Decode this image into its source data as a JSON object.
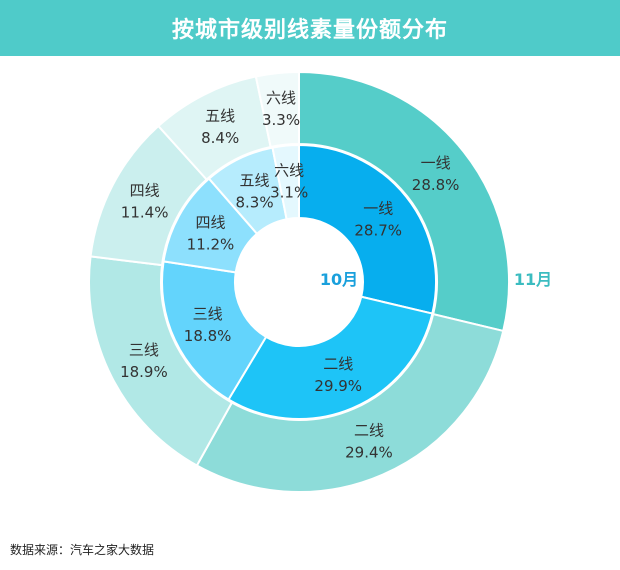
{
  "title": "按城市级别线素量份额分布",
  "source": "数据来源：汽车之家大数据",
  "chart_data": {
    "type": "donut",
    "title": "按城市级别线素量份额分布",
    "categories": [
      "一线",
      "二线",
      "三线",
      "四线",
      "五线",
      "六线"
    ],
    "series": [
      {
        "name": "10月",
        "values": [
          28.7,
          29.9,
          18.8,
          11.2,
          8.3,
          3.1
        ],
        "labels": [
          "28.7%",
          "29.9%",
          "18.8%",
          "11.2%",
          "8.3%",
          "3.1%"
        ],
        "colors": [
          "#07aeee",
          "#1ec4f7",
          "#63d4fc",
          "#8de0fd",
          "#b6ecfd",
          "#e4f8fe"
        ]
      },
      {
        "name": "11月",
        "values": [
          28.8,
          29.4,
          18.9,
          11.4,
          8.4,
          3.3
        ],
        "labels": [
          "28.8%",
          "29.4%",
          "18.9%",
          "11.4%",
          "8.4%",
          "3.3%"
        ],
        "colors": [
          "#55cdc9",
          "#8ddcd9",
          "#b1e8e6",
          "#cbefee",
          "#dff5f4",
          "#f0fafa"
        ]
      }
    ],
    "inner_label": "10月",
    "outer_label": "11月",
    "label_colors": {
      "inner": "#1aa0dc",
      "outer": "#3bbcc0"
    }
  }
}
